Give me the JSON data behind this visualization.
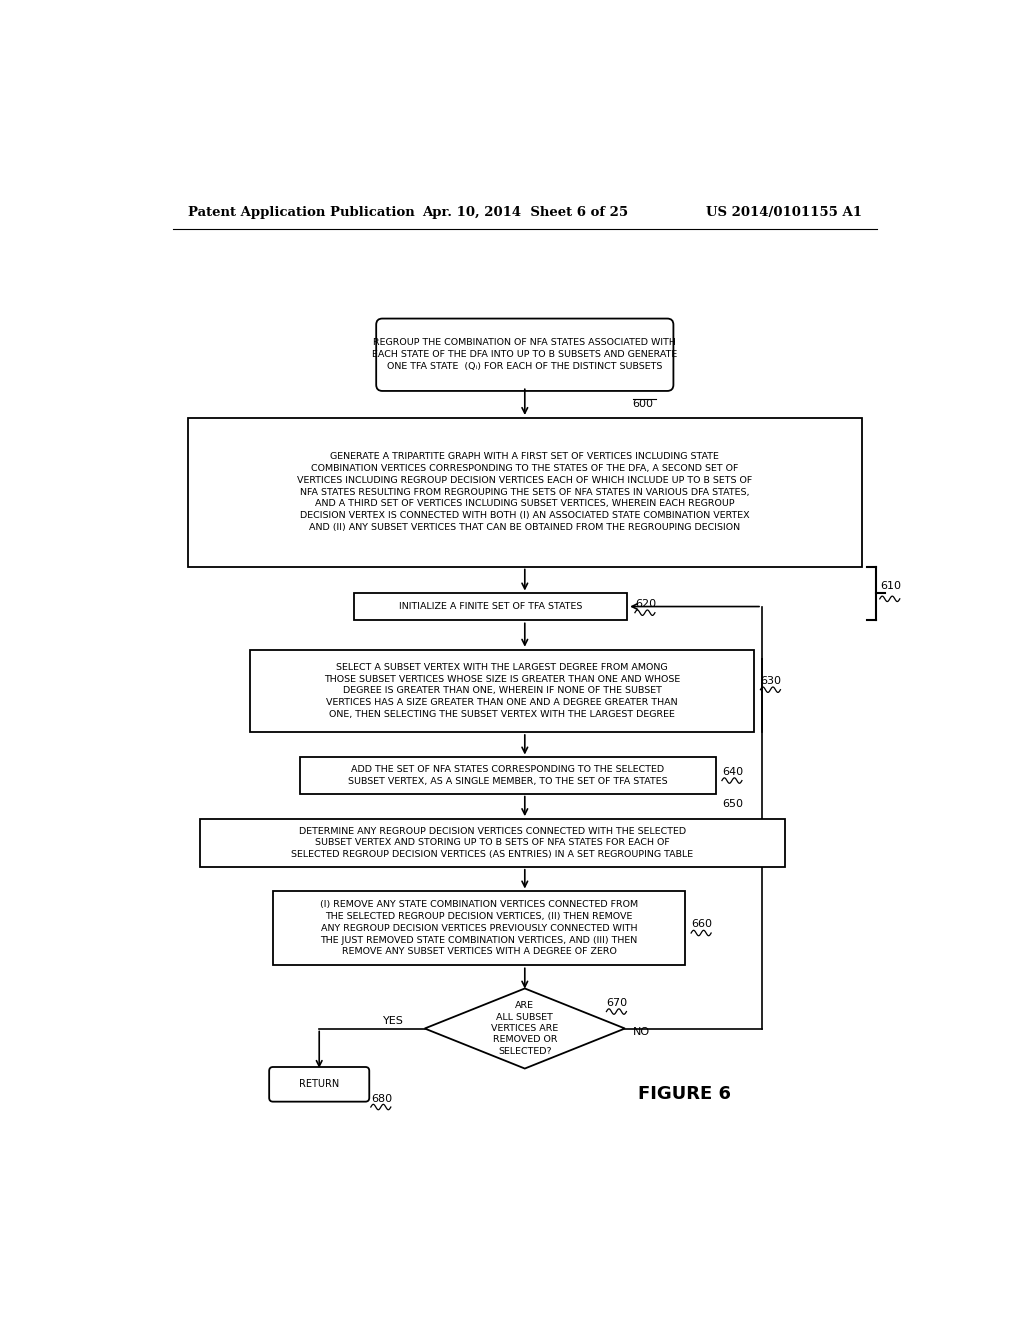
{
  "bg_color": "#ffffff",
  "header_left": "Patent Application Publication",
  "header_mid": "Apr. 10, 2014  Sheet 6 of 25",
  "header_right": "US 2014/0101155 A1",
  "figure_label": "FIGURE 6",
  "box0_text": "REGROUP THE COMBINATION OF NFA STATES ASSOCIATED WITH\nEACH STATE OF THE DFA INTO UP TO B SUBSETS AND GENERATE\nONE TFA STATE  (Qᵢ) FOR EACH OF THE DISTINCT SUBSETS",
  "box1_text": "GENERATE A TRIPARTITE GRAPH WITH A FIRST SET OF VERTICES INCLUDING STATE\nCOMBINATION VERTICES CORRESPONDING TO THE STATES OF THE DFA, A SECOND SET OF\nVERTICES INCLUDING REGROUP DECISION VERTICES EACH OF WHICH INCLUDE UP TO B SETS OF\nNFA STATES RESULTING FROM REGROUPING THE SETS OF NFA STATES IN VARIOUS DFA STATES,\nAND A THIRD SET OF VERTICES INCLUDING SUBSET VERTICES, WHEREIN EACH REGROUP\nDECISION VERTEX IS CONNECTED WITH BOTH (I) AN ASSOCIATED STATE COMBINATION VERTEX\nAND (II) ANY SUBSET VERTICES THAT CAN BE OBTAINED FROM THE REGROUPING DECISION",
  "box2_text": "INITIALIZE A FINITE SET OF TFA STATES",
  "box3_text": "SELECT A SUBSET VERTEX WITH THE LARGEST DEGREE FROM AMONG\nTHOSE SUBSET VERTICES WHOSE SIZE IS GREATER THAN ONE AND WHOSE\nDEGREE IS GREATER THAN ONE, WHEREIN IF NONE OF THE SUBSET\nVERTICES HAS A SIZE GREATER THAN ONE AND A DEGREE GREATER THAN\nONE, THEN SELECTING THE SUBSET VERTEX WITH THE LARGEST DEGREE",
  "box4_text": "ADD THE SET OF NFA STATES CORRESPONDING TO THE SELECTED\nSUBSET VERTEX, AS A SINGLE MEMBER, TO THE SET OF TFA STATES",
  "box5_text": "DETERMINE ANY REGROUP DECISION VERTICES CONNECTED WITH THE SELECTED\nSUBSET VERTEX AND STORING UP TO B SETS OF NFA STATES FOR EACH OF\nSELECTED REGROUP DECISION VERTICES (AS ENTRIES) IN A SET REGROUPING TABLE",
  "box6_text": "(I) REMOVE ANY STATE COMBINATION VERTICES CONNECTED FROM\nTHE SELECTED REGROUP DECISION VERTICES, (II) THEN REMOVE\nANY REGROUP DECISION VERTICES PREVIOUSLY CONNECTED WITH\nTHE JUST REMOVED STATE COMBINATION VERTICES, AND (III) THEN\nREMOVE ANY SUBSET VERTICES WITH A DEGREE OF ZERO",
  "diamond_text": "ARE\nALL SUBSET\nVERTICES ARE\nREMOVED OR\nSELECTED?",
  "return_text": "RETURN"
}
